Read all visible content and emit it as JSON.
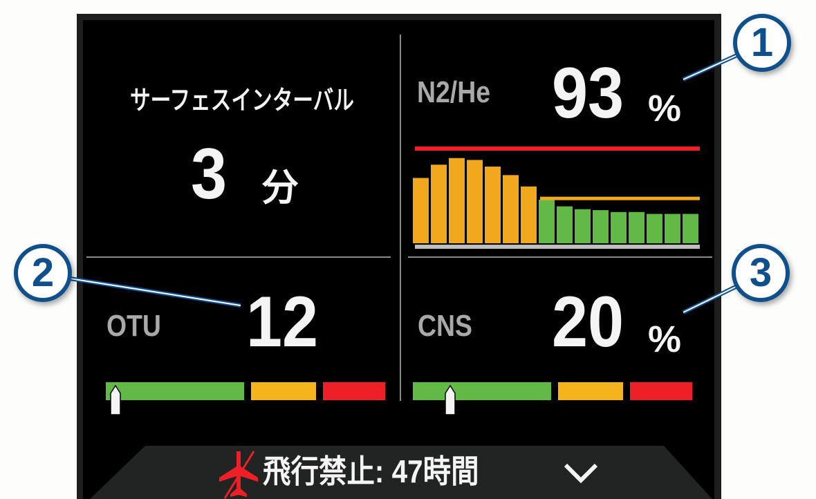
{
  "surface_interval": {
    "label": "サーフェスインターバル",
    "value": "3",
    "unit": "分"
  },
  "tissue": {
    "label": "N2/He",
    "value": "93",
    "unit": "%",
    "chart_data": {
      "type": "bar",
      "values": [
        69,
        83,
        90,
        88,
        81,
        72,
        60,
        46,
        39,
        36,
        35,
        33,
        33,
        31,
        31,
        31
      ],
      "colors": {
        "warning": "#f2a81e",
        "normal": "#62b946",
        "limit_line": "#ec2026",
        "threshold_line": "#f2a81e",
        "baseline": "#bdbdbd"
      },
      "limit": 100,
      "threshold": 47
    }
  },
  "otu": {
    "label": "OTU",
    "value": "12",
    "marker_fraction": 0.02
  },
  "cns": {
    "label": "CNS",
    "value": "20",
    "unit": "%",
    "marker_fraction": 0.12
  },
  "gauge_colors": {
    "green": "#62b946",
    "yellow": "#f5b41c",
    "red": "#ec2026"
  },
  "footer": {
    "text": "飛行禁止: 47時間",
    "icon": "no-fly-airplane-icon",
    "chevron": "chevron-down-icon"
  },
  "callouts": [
    "1",
    "2",
    "3"
  ],
  "accent": "#0e4f8c"
}
